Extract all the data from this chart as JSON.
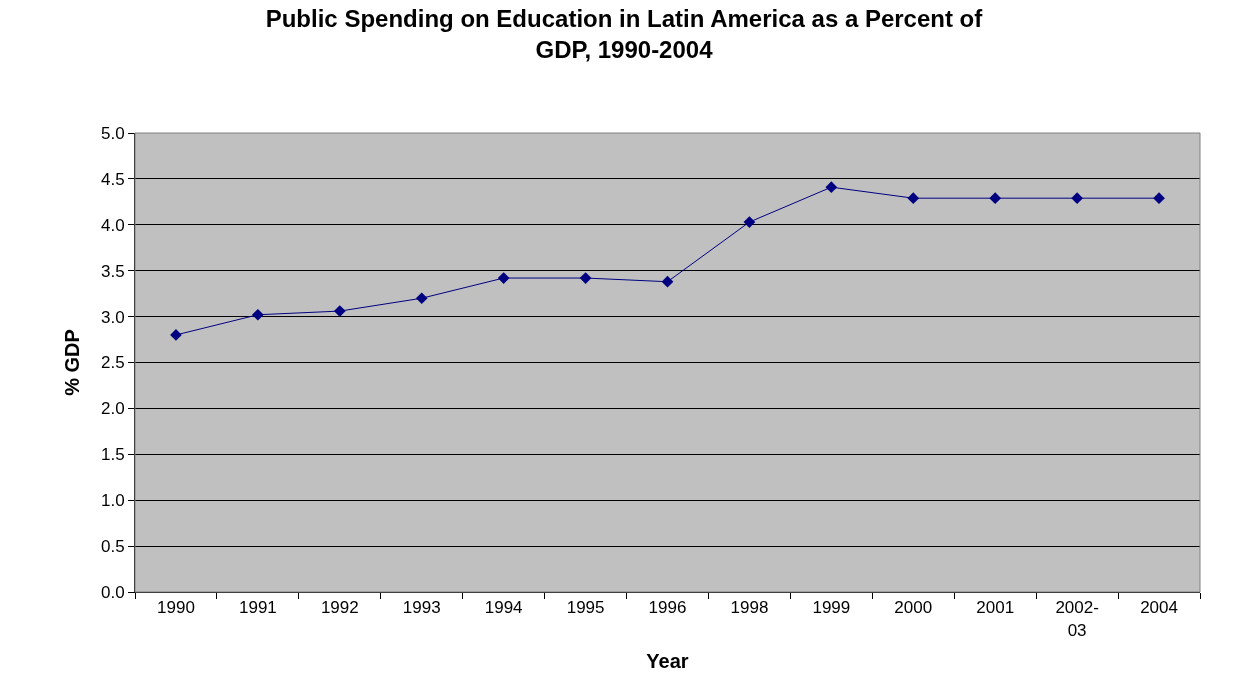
{
  "chart_data": {
    "type": "line",
    "title": "Public Spending on Education in Latin America as a Percent of GDP, 1990-2004",
    "xlabel": "Year",
    "ylabel": "% GDP",
    "categories": [
      "1990",
      "1991",
      "1992",
      "1993",
      "1994",
      "1995",
      "1996",
      "1998",
      "1999",
      "2000",
      "2001",
      "2002-03",
      "2004"
    ],
    "series": [
      {
        "color": "#000080",
        "values": [
          2.8,
          3.02,
          3.06,
          3.2,
          3.42,
          3.42,
          3.38,
          4.03,
          4.41,
          4.29,
          4.29,
          4.29,
          4.29
        ]
      }
    ],
    "ylim": [
      0,
      5
    ],
    "yticks": [
      {
        "value": 0,
        "label": "0.0"
      },
      {
        "value": 0.5,
        "label": "0.5"
      },
      {
        "value": 1,
        "label": "1.0"
      },
      {
        "value": 1.5,
        "label": "1.5"
      },
      {
        "value": 2,
        "label": "2.0"
      },
      {
        "value": 2.5,
        "label": "2.5"
      },
      {
        "value": 3,
        "label": "3.0"
      },
      {
        "value": 3.5,
        "label": "3.5"
      },
      {
        "value": 4,
        "label": "4.0"
      },
      {
        "value": 4.5,
        "label": "4.5"
      },
      {
        "value": 5,
        "label": "5.0"
      }
    ],
    "grid": "y",
    "marker": "diamond",
    "line_style": "solid"
  }
}
